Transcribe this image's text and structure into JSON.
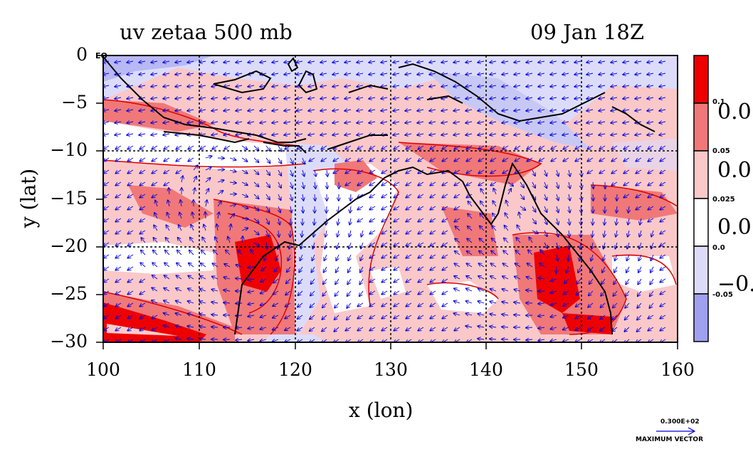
{
  "title_left": "uv zetaa 500 mb",
  "title_right": "09 Jan 18Z",
  "corner_label": "EQ",
  "x_axis": {
    "label": "x (lon)",
    "ticks": [
      "100",
      "110",
      "120",
      "130",
      "140",
      "150",
      "160"
    ]
  },
  "y_axis": {
    "label": "y (lat)",
    "ticks": [
      "0",
      "−5",
      "−10",
      "−15",
      "−20",
      "−25",
      "−30"
    ]
  },
  "colorbar": {
    "colors": [
      "#ee0000",
      "#f07878",
      "#fac8c8",
      "#ffffff",
      "#dcdcfa",
      "#a0a0f0"
    ],
    "small_labels": [
      "0.1",
      "0.05",
      "0.025",
      "0.0",
      "-0.05"
    ],
    "big_labels": [
      "0.0",
      "0.0",
      "0.0",
      "−0."
    ]
  },
  "max_vector": {
    "value": "0.300E+02",
    "label": "MAXIMUM VECTOR"
  },
  "colors": {
    "coast": "#000000",
    "vector": "#0000dd",
    "contour": "#e00000",
    "grid": "#000000"
  }
}
